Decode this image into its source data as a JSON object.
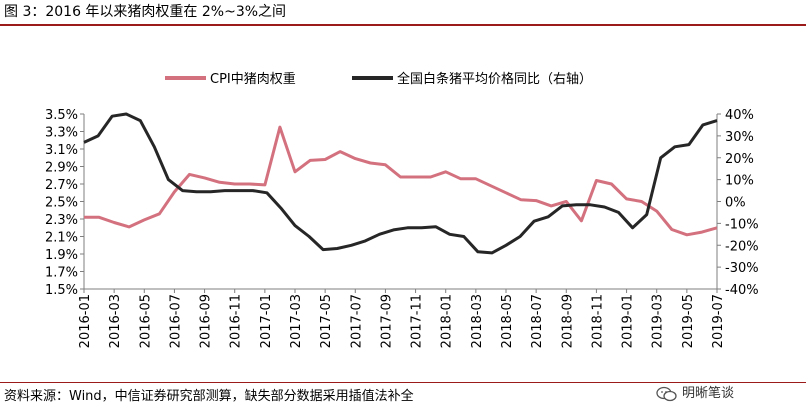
{
  "figure_title": "图 3：2016 年以来猪肉权重在 2%~3%之间",
  "source_note": "资料来源：Wind，中信证券研究部测算，缺失部分数据采用插值法补全",
  "watermark": {
    "text": "明晰笔谈",
    "logo_icon": "wechat-logo-icon"
  },
  "colors": {
    "cpi": "#d4717f",
    "pig": "#262626",
    "rule": "#9b1b1b"
  },
  "chart_data": {
    "type": "line",
    "x_tick_labels": [
      "2016-01",
      "2016-03",
      "2016-05",
      "2016-07",
      "2016-09",
      "2016-11",
      "2017-01",
      "2017-03",
      "2017-05",
      "2017-07",
      "2017-09",
      "2017-11",
      "2018-01",
      "2018-03",
      "2018-05",
      "2018-07",
      "2018-09",
      "2018-11",
      "2019-01",
      "2019-03",
      "2019-05",
      "2019-07"
    ],
    "left_axis": {
      "min": 1.5,
      "max": 3.5,
      "ticks": [
        "1.5%",
        "1.7%",
        "1.9%",
        "2.1%",
        "2.3%",
        "2.5%",
        "2.7%",
        "2.9%",
        "3.1%",
        "3.3%",
        "3.5%"
      ]
    },
    "right_axis": {
      "min": -40,
      "max": 40,
      "ticks": [
        "-40%",
        "-30%",
        "-20%",
        "-10%",
        "0%",
        "10%",
        "20%",
        "30%",
        "40%"
      ]
    },
    "legend_position": "top",
    "series": [
      {
        "name": "CPI中猪肉权重",
        "axis": "left",
        "unit": "%",
        "values": [
          2.32,
          2.32,
          2.26,
          2.21,
          2.29,
          2.36,
          2.61,
          2.81,
          2.77,
          2.72,
          2.7,
          2.7,
          2.69,
          3.35,
          2.84,
          2.97,
          2.98,
          3.07,
          2.99,
          2.94,
          2.92,
          2.78,
          2.78,
          2.78,
          2.84,
          2.76,
          2.76,
          2.68,
          2.6,
          2.52,
          2.51,
          2.45,
          2.5,
          2.28,
          2.74,
          2.7,
          2.53,
          2.5,
          2.39,
          2.18,
          2.12,
          2.15,
          2.2
        ]
      },
      {
        "name": "全国白条猪平均价格同比（右轴）",
        "axis": "right",
        "unit": "%",
        "values": [
          27,
          30,
          39,
          40,
          37,
          25,
          10,
          5,
          4.5,
          4.5,
          5,
          5,
          5,
          4,
          -3,
          -11,
          -16,
          -22,
          -21.5,
          -20,
          -18,
          -15,
          -13,
          -12,
          -12,
          -11.5,
          -15,
          -16,
          -23,
          -23.5,
          -20,
          -16,
          -9,
          -7,
          -2,
          -1.5,
          -1.5,
          -2.5,
          -5,
          -12,
          -6,
          20,
          25,
          26,
          35,
          37
        ]
      }
    ],
    "series_x_index": {
      "cpi_step": 0.5,
      "pig_step": 0.4666667
    }
  }
}
